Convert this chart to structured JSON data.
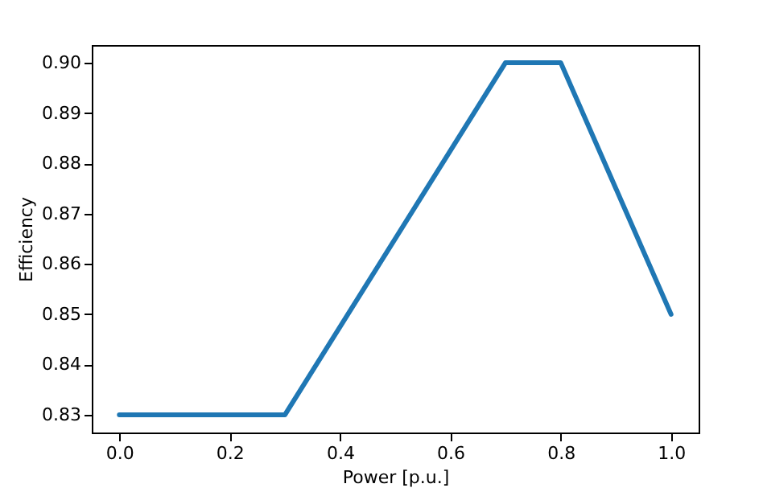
{
  "chart_data": {
    "type": "line",
    "xlabel": "Power [p.u.]",
    "ylabel": "Efficiency",
    "x": [
      0.0,
      0.3,
      0.7,
      0.8,
      1.0
    ],
    "series": [
      {
        "color": "#1f77b4",
        "values": [
          0.83,
          0.83,
          0.9,
          0.9,
          0.85
        ]
      }
    ],
    "xlim": [
      -0.05,
      1.05
    ],
    "ylim": [
      0.8265,
      0.9035
    ],
    "xticks": [
      {
        "value": 0,
        "label": "0.0"
      },
      {
        "value": 0.2,
        "label": "0.2"
      },
      {
        "value": 0.4,
        "label": "0.4"
      },
      {
        "value": 0.6,
        "label": "0.6"
      },
      {
        "value": 0.8,
        "label": "0.8"
      },
      {
        "value": 1,
        "label": "1.0"
      }
    ],
    "yticks": [
      {
        "value": 0.83,
        "label": "0.83"
      },
      {
        "value": 0.84,
        "label": "0.84"
      },
      {
        "value": 0.85,
        "label": "0.85"
      },
      {
        "value": 0.86,
        "label": "0.86"
      },
      {
        "value": 0.87,
        "label": "0.87"
      },
      {
        "value": 0.88,
        "label": "0.88"
      },
      {
        "value": 0.89,
        "label": "0.89"
      },
      {
        "value": 0.9,
        "label": "0.90"
      }
    ],
    "grid": false,
    "marker": "none",
    "line_style": "solid"
  }
}
